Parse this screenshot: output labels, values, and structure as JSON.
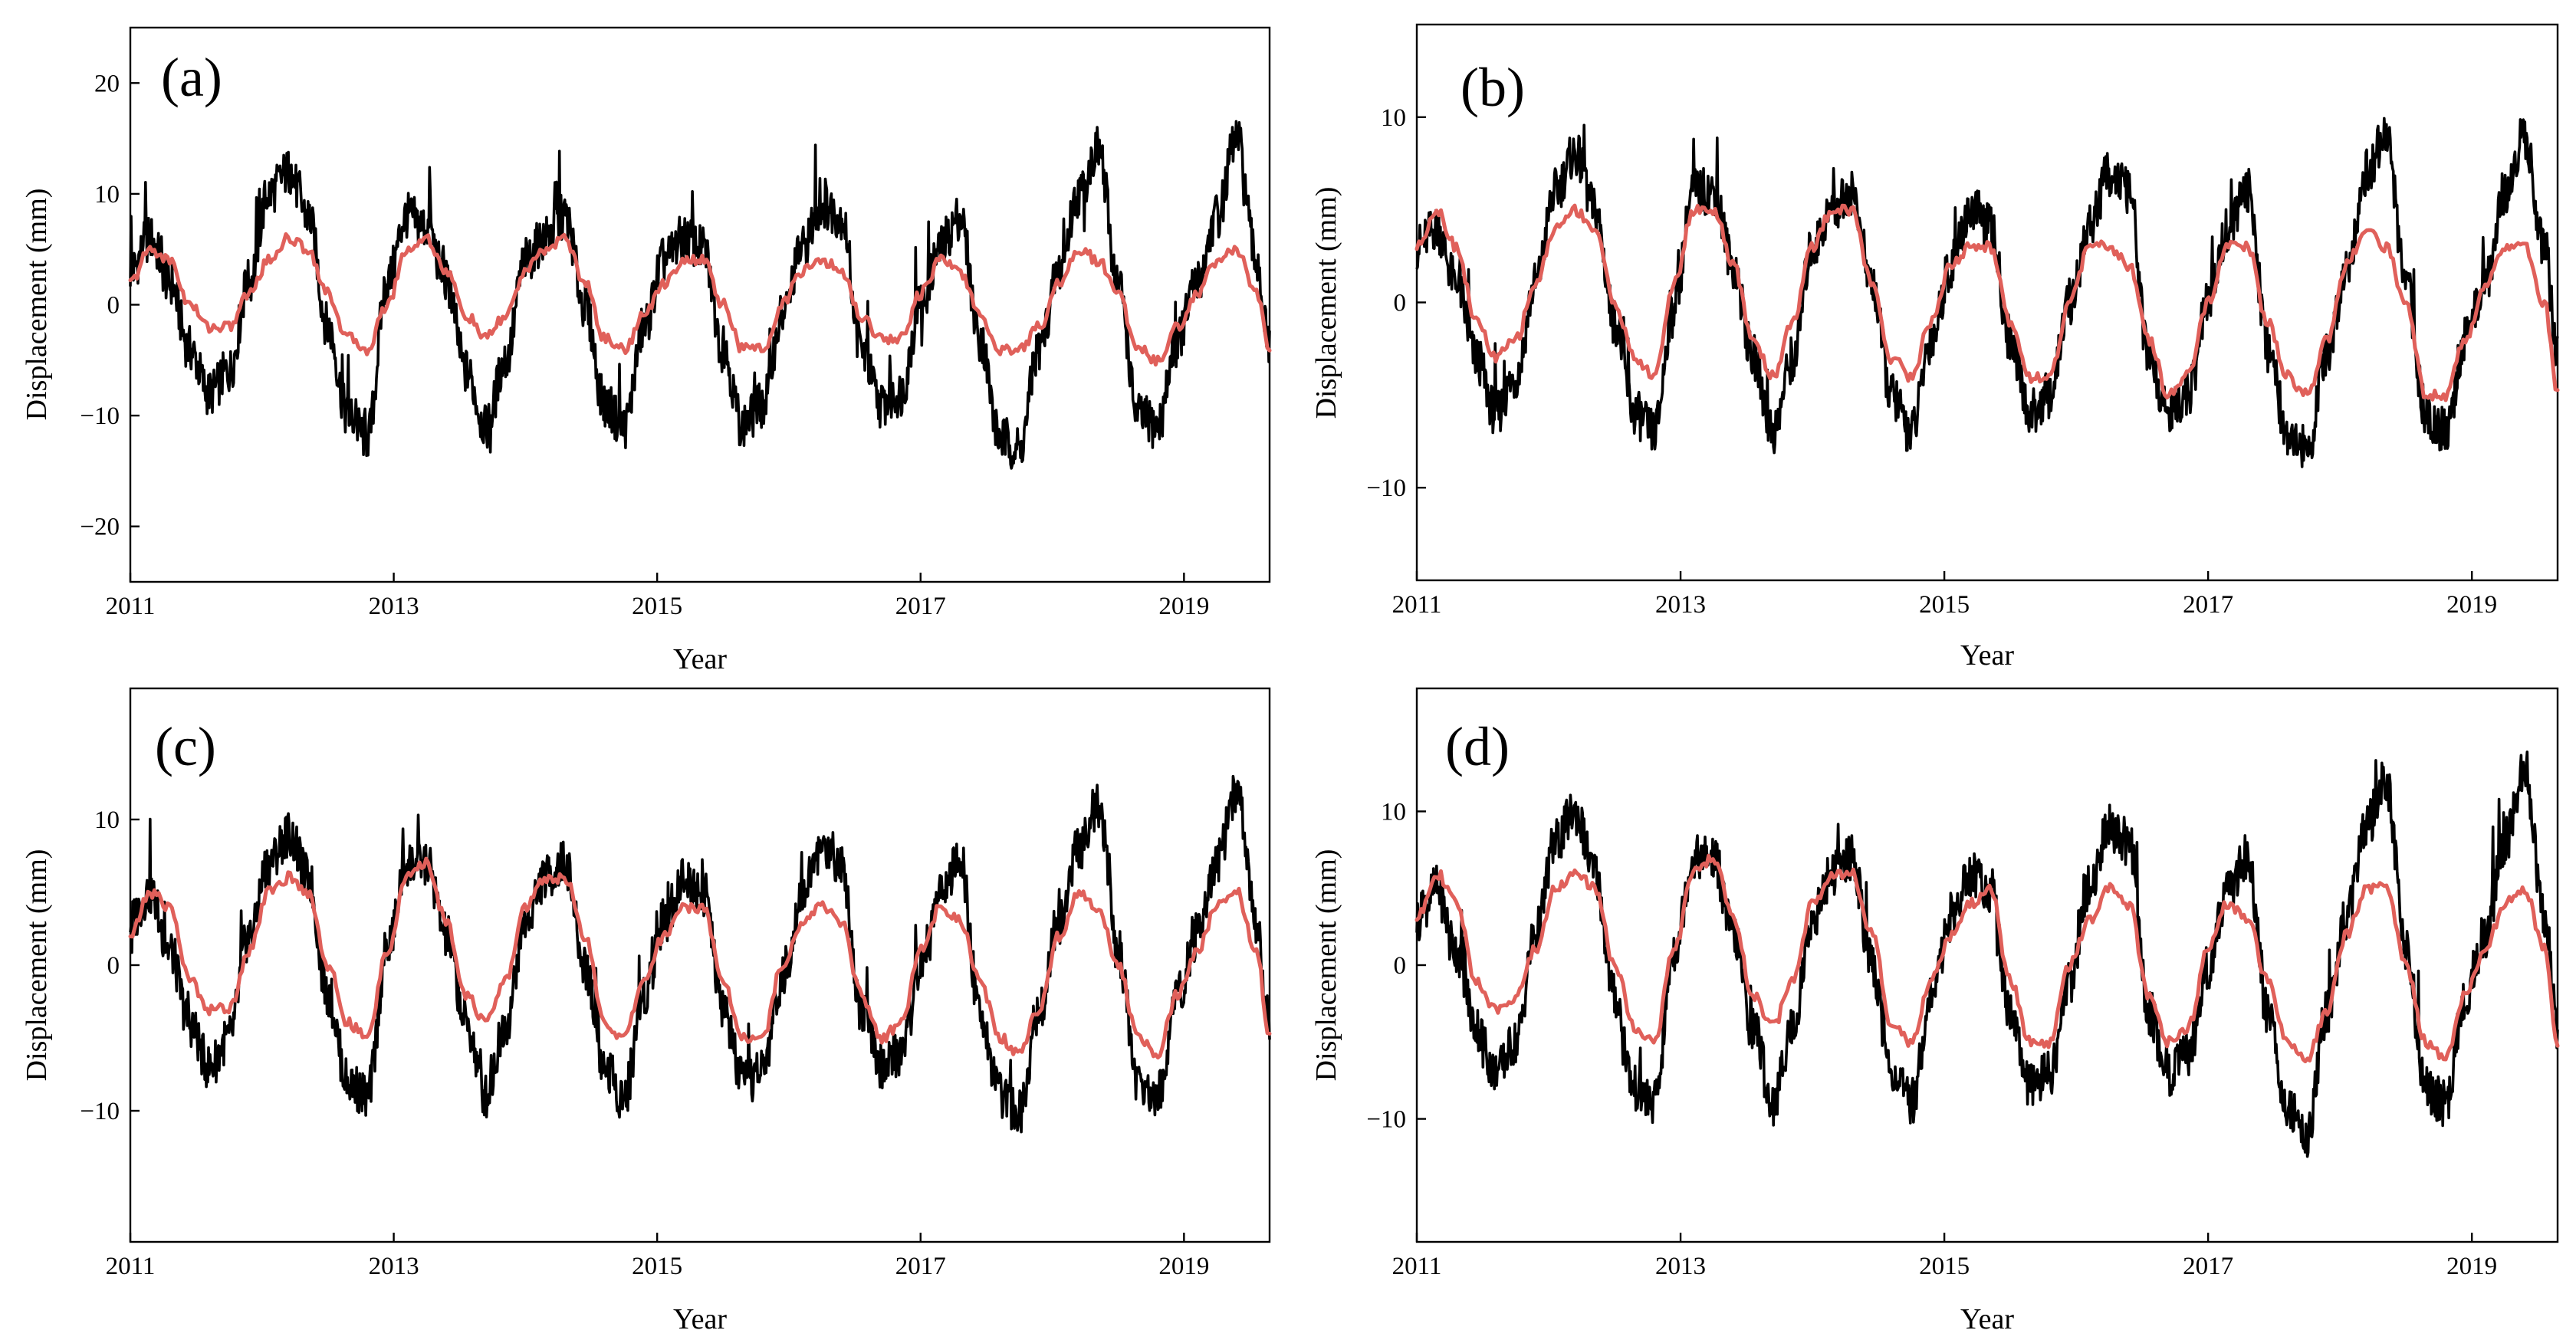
{
  "colors": {
    "observed": "#000000",
    "model": "#e0605a"
  },
  "chart_data": [
    {
      "type": "line",
      "panel_label": "(a)",
      "xlabel": "Year",
      "ylabel": "Displacement (mm)",
      "xlim": [
        2011.0,
        2019.65
      ],
      "ylim": [
        -25,
        25
      ],
      "xticks": [
        2011,
        2013,
        2015,
        2017,
        2019
      ],
      "yticks": [
        -20,
        -10,
        0,
        10,
        20
      ],
      "series": [
        {
          "role": "observed",
          "color": "#000000",
          "x": [
            2011.0,
            2011.15,
            2011.3,
            2011.45,
            2011.6,
            2011.75,
            2011.9,
            2012.05,
            2012.2,
            2012.35,
            2012.5,
            2012.65,
            2012.8,
            2012.95,
            2013.1,
            2013.25,
            2013.4,
            2013.55,
            2013.7,
            2013.85,
            2014.0,
            2014.15,
            2014.3,
            2014.45,
            2014.6,
            2014.75,
            2014.9,
            2015.05,
            2015.2,
            2015.35,
            2015.5,
            2015.65,
            2015.8,
            2015.95,
            2016.1,
            2016.25,
            2016.4,
            2016.55,
            2016.7,
            2016.85,
            2017.0,
            2017.15,
            2017.3,
            2017.45,
            2017.6,
            2017.75,
            2017.9,
            2018.05,
            2018.2,
            2018.35,
            2018.5,
            2018.65,
            2018.8,
            2018.95,
            2019.1,
            2019.25,
            2019.4,
            2019.55,
            2019.65
          ],
          "y": [
            3,
            6,
            2,
            -4,
            -8,
            -6,
            2,
            10,
            12,
            8,
            -2,
            -10,
            -12,
            2,
            8,
            7,
            2,
            -6,
            -11,
            -5,
            4,
            6,
            8,
            0,
            -9,
            -11,
            -2,
            4,
            6,
            5,
            -4,
            -11,
            -9,
            -1,
            5,
            9,
            8,
            -4,
            -9,
            -8,
            0,
            5,
            8,
            -3,
            -12,
            -13,
            -4,
            3,
            10,
            14,
            2,
            -10,
            -11,
            -3,
            2,
            8,
            15,
            4,
            -4
          ]
        },
        {
          "role": "model",
          "color": "#e0605a",
          "x": [
            2011.0,
            2011.15,
            2011.3,
            2011.45,
            2011.6,
            2011.75,
            2011.9,
            2012.05,
            2012.2,
            2012.35,
            2012.5,
            2012.65,
            2012.8,
            2012.95,
            2013.1,
            2013.25,
            2013.4,
            2013.55,
            2013.7,
            2013.85,
            2014.0,
            2014.15,
            2014.3,
            2014.45,
            2014.6,
            2014.75,
            2014.9,
            2015.05,
            2015.2,
            2015.35,
            2015.5,
            2015.65,
            2015.8,
            2015.95,
            2016.1,
            2016.25,
            2016.4,
            2016.55,
            2016.7,
            2016.85,
            2017.0,
            2017.15,
            2017.3,
            2017.45,
            2017.6,
            2017.75,
            2017.9,
            2018.05,
            2018.2,
            2018.35,
            2018.5,
            2018.65,
            2018.8,
            2018.95,
            2019.1,
            2019.25,
            2019.4,
            2019.55,
            2019.65
          ],
          "y": [
            2,
            5,
            4,
            0,
            -2,
            -2,
            1,
            4,
            6,
            5,
            1,
            -3,
            -4,
            0,
            5,
            6,
            3,
            -1,
            -3,
            -1,
            3,
            5,
            6,
            2,
            -3,
            -4,
            -1,
            2,
            4,
            4,
            0,
            -4,
            -4,
            0,
            3,
            4,
            3,
            -1,
            -3,
            -3,
            1,
            4,
            3,
            -1,
            -4,
            -4,
            -2,
            2,
            5,
            4,
            1,
            -4,
            -5,
            -2,
            1,
            4,
            5,
            1,
            -4
          ]
        }
      ]
    },
    {
      "type": "line",
      "panel_label": "(b)",
      "xlabel": "Year",
      "ylabel": "Displacement (mm)",
      "xlim": [
        2011.0,
        2019.65
      ],
      "ylim": [
        -15,
        15
      ],
      "xticks": [
        2011,
        2013,
        2015,
        2017,
        2019
      ],
      "yticks": [
        -10,
        0,
        10
      ],
      "series": [
        {
          "role": "observed",
          "color": "#000000",
          "x": [
            2011.0,
            2011.15,
            2011.3,
            2011.45,
            2011.6,
            2011.75,
            2011.9,
            2012.05,
            2012.2,
            2012.35,
            2012.5,
            2012.65,
            2012.8,
            2012.95,
            2013.1,
            2013.25,
            2013.4,
            2013.55,
            2013.7,
            2013.85,
            2014.0,
            2014.15,
            2014.3,
            2014.45,
            2014.6,
            2014.75,
            2014.9,
            2015.05,
            2015.2,
            2015.35,
            2015.5,
            2015.65,
            2015.8,
            2015.95,
            2016.1,
            2016.25,
            2016.4,
            2016.55,
            2016.7,
            2016.85,
            2017.0,
            2017.15,
            2017.3,
            2017.45,
            2017.6,
            2017.75,
            2017.9,
            2018.05,
            2018.2,
            2018.35,
            2018.5,
            2018.65,
            2018.8,
            2018.95,
            2019.1,
            2019.25,
            2019.4,
            2019.55,
            2019.65
          ],
          "y": [
            3,
            4,
            1,
            -3,
            -6,
            -4,
            1,
            6,
            8,
            5,
            -1,
            -6,
            -7,
            0,
            6,
            6,
            2,
            -3,
            -7,
            -3,
            3,
            5,
            6,
            1,
            -5,
            -7,
            -2,
            2,
            5,
            4,
            -2,
            -6,
            -5,
            0,
            4,
            7,
            6,
            -3,
            -6,
            -5,
            0,
            4,
            6,
            -2,
            -7,
            -8,
            -3,
            2,
            7,
            9,
            1,
            -6,
            -7,
            -2,
            1,
            6,
            9,
            3,
            -3
          ]
        },
        {
          "role": "model",
          "color": "#e0605a",
          "x": [
            2011.0,
            2011.15,
            2011.3,
            2011.45,
            2011.6,
            2011.75,
            2011.9,
            2012.05,
            2012.2,
            2012.35,
            2012.5,
            2012.65,
            2012.8,
            2012.95,
            2013.1,
            2013.25,
            2013.4,
            2013.55,
            2013.7,
            2013.85,
            2014.0,
            2014.15,
            2014.3,
            2014.45,
            2014.6,
            2014.75,
            2014.9,
            2015.05,
            2015.2,
            2015.35,
            2015.5,
            2015.65,
            2015.8,
            2015.95,
            2016.1,
            2016.25,
            2016.4,
            2016.55,
            2016.7,
            2016.85,
            2017.0,
            2017.15,
            2017.3,
            2017.45,
            2017.6,
            2017.75,
            2017.9,
            2018.05,
            2018.2,
            2018.35,
            2018.5,
            2018.65,
            2018.8,
            2018.95,
            2019.1,
            2019.25,
            2019.4,
            2019.55,
            2019.65
          ],
          "y": [
            3,
            5,
            3,
            -1,
            -3,
            -2,
            1,
            4,
            5,
            4,
            0,
            -3,
            -4,
            1,
            5,
            5,
            2,
            -2,
            -4,
            -1,
            3,
            5,
            5,
            1,
            -3,
            -4,
            -1,
            2,
            3,
            3,
            -1,
            -4,
            -4,
            0,
            3,
            3,
            2,
            -2,
            -5,
            -4,
            0,
            3,
            3,
            -1,
            -4,
            -5,
            -2,
            2,
            4,
            3,
            0,
            -5,
            -5,
            -2,
            1,
            3,
            3,
            0,
            -5
          ]
        }
      ]
    },
    {
      "type": "line",
      "panel_label": "(c)",
      "xlabel": "Year",
      "ylabel": "Displacement (mm)",
      "xlim": [
        2011.0,
        2019.65
      ],
      "ylim": [
        -19,
        19
      ],
      "xticks": [
        2011,
        2013,
        2015,
        2017,
        2019
      ],
      "yticks": [
        -10,
        0,
        10
      ],
      "series": [
        {
          "role": "observed",
          "color": "#000000",
          "x": [
            2011.0,
            2011.15,
            2011.3,
            2011.45,
            2011.6,
            2011.75,
            2011.9,
            2012.05,
            2012.2,
            2012.35,
            2012.5,
            2012.65,
            2012.8,
            2012.95,
            2013.1,
            2013.25,
            2013.4,
            2013.55,
            2013.7,
            2013.85,
            2014.0,
            2014.15,
            2014.3,
            2014.45,
            2014.6,
            2014.75,
            2014.9,
            2015.05,
            2015.2,
            2015.35,
            2015.5,
            2015.65,
            2015.8,
            2015.95,
            2016.1,
            2016.25,
            2016.4,
            2016.55,
            2016.7,
            2016.85,
            2017.0,
            2017.15,
            2017.3,
            2017.45,
            2017.6,
            2017.75,
            2017.9,
            2018.05,
            2018.2,
            2018.35,
            2018.5,
            2018.65,
            2018.8,
            2018.95,
            2019.1,
            2019.25,
            2019.4,
            2019.55,
            2019.65
          ],
          "y": [
            3,
            5,
            1,
            -4,
            -7,
            -5,
            2,
            7,
            9,
            6,
            -2,
            -8,
            -9,
            1,
            7,
            7,
            2,
            -4,
            -9,
            -4,
            3,
            6,
            7,
            0,
            -7,
            -9,
            -2,
            3,
            6,
            5,
            -3,
            -8,
            -7,
            -1,
            5,
            8,
            7,
            -3,
            -7,
            -6,
            0,
            5,
            7,
            -3,
            -9,
            -10,
            -3,
            3,
            8,
            11,
            1,
            -8,
            -9,
            -2,
            2,
            7,
            12,
            3,
            -4
          ]
        },
        {
          "role": "model",
          "color": "#e0605a",
          "x": [
            2011.0,
            2011.15,
            2011.3,
            2011.45,
            2011.6,
            2011.75,
            2011.9,
            2012.05,
            2012.2,
            2012.35,
            2012.5,
            2012.65,
            2012.8,
            2012.95,
            2013.1,
            2013.25,
            2013.4,
            2013.55,
            2013.7,
            2013.85,
            2014.0,
            2014.15,
            2014.3,
            2014.45,
            2014.6,
            2014.75,
            2014.9,
            2015.05,
            2015.2,
            2015.35,
            2015.5,
            2015.65,
            2015.8,
            2015.95,
            2016.1,
            2016.25,
            2016.4,
            2016.55,
            2016.7,
            2016.85,
            2017.0,
            2017.15,
            2017.3,
            2017.45,
            2017.6,
            2017.75,
            2017.9,
            2018.05,
            2018.2,
            2018.35,
            2018.5,
            2018.65,
            2018.8,
            2018.95,
            2019.1,
            2019.25,
            2019.4,
            2019.55,
            2019.65
          ],
          "y": [
            2,
            5,
            4,
            -1,
            -3,
            -3,
            1,
            5,
            6,
            5,
            0,
            -4,
            -5,
            1,
            6,
            7,
            3,
            -2,
            -4,
            -1,
            4,
            6,
            6,
            2,
            -4,
            -5,
            -1,
            2,
            4,
            4,
            -1,
            -5,
            -5,
            0,
            3,
            4,
            3,
            -2,
            -5,
            -4,
            1,
            4,
            3,
            -1,
            -5,
            -6,
            -3,
            2,
            5,
            4,
            0,
            -5,
            -6,
            -2,
            1,
            4,
            5,
            1,
            -5
          ]
        }
      ]
    },
    {
      "type": "line",
      "panel_label": "(d)",
      "xlabel": "Year",
      "ylabel": "Displacement (mm)",
      "xlim": [
        2011.0,
        2019.65
      ],
      "ylim": [
        -18,
        18
      ],
      "xticks": [
        2011,
        2013,
        2015,
        2017,
        2019
      ],
      "yticks": [
        -10,
        0,
        10
      ],
      "series": [
        {
          "role": "observed",
          "color": "#000000",
          "x": [
            2011.0,
            2011.15,
            2011.3,
            2011.45,
            2011.6,
            2011.75,
            2011.9,
            2012.05,
            2012.2,
            2012.35,
            2012.5,
            2012.65,
            2012.8,
            2012.95,
            2013.1,
            2013.25,
            2013.4,
            2013.55,
            2013.7,
            2013.85,
            2014.0,
            2014.15,
            2014.3,
            2014.45,
            2014.6,
            2014.75,
            2014.9,
            2015.05,
            2015.2,
            2015.35,
            2015.5,
            2015.65,
            2015.8,
            2015.95,
            2016.1,
            2016.25,
            2016.4,
            2016.55,
            2016.7,
            2016.85,
            2017.0,
            2017.15,
            2017.3,
            2017.45,
            2017.6,
            2017.75,
            2017.9,
            2018.05,
            2018.2,
            2018.35,
            2018.5,
            2018.65,
            2018.8,
            2018.95,
            2019.1,
            2019.25,
            2019.4,
            2019.55,
            2019.65
          ],
          "y": [
            3,
            5,
            1,
            -4,
            -7,
            -5,
            2,
            8,
            10,
            6,
            -2,
            -8,
            -9,
            1,
            7,
            7,
            2,
            -4,
            -9,
            -4,
            3,
            6,
            7,
            0,
            -7,
            -9,
            -2,
            3,
            6,
            5,
            -3,
            -8,
            -7,
            -1,
            5,
            9,
            8,
            -3,
            -7,
            -6,
            0,
            5,
            7,
            -3,
            -9,
            -11,
            -3,
            3,
            9,
            12,
            1,
            -8,
            -9,
            -2,
            2,
            8,
            13,
            3,
            -4
          ]
        },
        {
          "role": "model",
          "color": "#e0605a",
          "x": [
            2011.0,
            2011.15,
            2011.3,
            2011.45,
            2011.6,
            2011.75,
            2011.9,
            2012.05,
            2012.2,
            2012.35,
            2012.5,
            2012.65,
            2012.8,
            2012.95,
            2013.1,
            2013.25,
            2013.4,
            2013.55,
            2013.7,
            2013.85,
            2014.0,
            2014.15,
            2014.3,
            2014.45,
            2014.6,
            2014.75,
            2014.9,
            2015.05,
            2015.2,
            2015.35,
            2015.5,
            2015.65,
            2015.8,
            2015.95,
            2016.1,
            2016.25,
            2016.4,
            2016.55,
            2016.7,
            2016.85,
            2017.0,
            2017.15,
            2017.3,
            2017.45,
            2017.6,
            2017.75,
            2017.9,
            2018.05,
            2018.2,
            2018.35,
            2018.5,
            2018.65,
            2018.8,
            2018.95,
            2019.1,
            2019.25,
            2019.4,
            2019.55,
            2019.65
          ],
          "y": [
            3,
            6,
            4,
            -1,
            -3,
            -2,
            1,
            5,
            6,
            5,
            0,
            -4,
            -5,
            1,
            6,
            7,
            3,
            -2,
            -4,
            -1,
            4,
            6,
            6,
            2,
            -4,
            -5,
            -1,
            2,
            4,
            5,
            -1,
            -5,
            -5,
            0,
            3,
            5,
            4,
            -2,
            -5,
            -4,
            1,
            4,
            3,
            -1,
            -5,
            -6,
            -3,
            2,
            5,
            5,
            0,
            -5,
            -6,
            -2,
            1,
            4,
            5,
            1,
            -5
          ]
        }
      ]
    }
  ]
}
